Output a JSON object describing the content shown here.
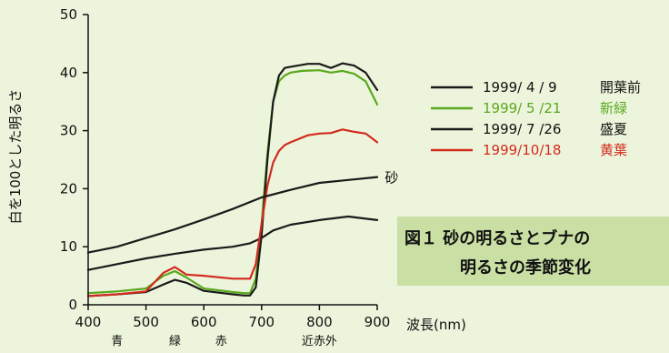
{
  "chart_data": {
    "type": "line",
    "ylabel": "白を100とした明るさ",
    "xlabel": "波長(nm)",
    "xlim": [
      400,
      900
    ],
    "ylim": [
      0,
      50
    ],
    "x_ticks": [
      400,
      500,
      600,
      700,
      800,
      900
    ],
    "y_ticks": [
      0,
      10,
      20,
      30,
      40,
      50
    ],
    "grid": false,
    "legend_position": "right",
    "band_labels": [
      {
        "label": "青",
        "x": 450
      },
      {
        "label": "緑",
        "x": 550
      },
      {
        "label": "赤",
        "x": 630
      },
      {
        "label": "近赤外",
        "x": 800
      }
    ],
    "caption": {
      "line1": "図１ 砂の明るさとブナの",
      "line2": "明るさの季節変化"
    },
    "annotations": [
      {
        "text": "砂",
        "x": 910,
        "y": 22
      }
    ],
    "series": [
      {
        "name": "1999/ 4 / 9　開葉前",
        "date": "1999/ 4 / 9",
        "label": "開葉前",
        "color": "#1a1a1a",
        "x": [
          400,
          450,
          500,
          550,
          600,
          650,
          680,
          700,
          720,
          750,
          800,
          850,
          900
        ],
        "y": [
          6.0,
          7.0,
          8.0,
          8.8,
          9.5,
          10.0,
          10.6,
          11.5,
          12.8,
          13.8,
          14.6,
          15.2,
          14.6
        ]
      },
      {
        "name": "1999/ 5 /21　新緑",
        "date": "1999/ 5 /21",
        "label": "新緑",
        "color": "#5aa81e",
        "x": [
          400,
          450,
          500,
          530,
          550,
          570,
          600,
          650,
          670,
          680,
          690,
          700,
          710,
          720,
          730,
          740,
          750,
          770,
          800,
          820,
          840,
          860,
          880,
          900
        ],
        "y": [
          2.0,
          2.3,
          2.8,
          5.0,
          5.8,
          4.7,
          2.8,
          2.2,
          2.0,
          2.0,
          4.5,
          14.0,
          26.0,
          35.0,
          38.5,
          39.5,
          40.0,
          40.3,
          40.4,
          40.0,
          40.3,
          39.8,
          38.5,
          34.5
        ]
      },
      {
        "name": "1999/ 7 /26　盛夏",
        "date": "1999/ 7 /26",
        "label": "盛夏",
        "color": "#1a1a1a",
        "x": [
          400,
          450,
          500,
          530,
          550,
          570,
          600,
          650,
          670,
          680,
          690,
          700,
          710,
          720,
          730,
          740,
          750,
          780,
          800,
          820,
          840,
          860,
          880,
          900
        ],
        "y": [
          1.5,
          1.8,
          2.2,
          3.5,
          4.3,
          3.8,
          2.4,
          1.8,
          1.6,
          1.6,
          3.0,
          12.0,
          25.0,
          35.0,
          39.5,
          40.8,
          41.0,
          41.5,
          41.5,
          40.8,
          41.6,
          41.2,
          40.0,
          37.0
        ]
      },
      {
        "name": "1999/10/18　黄葉",
        "date": "1999/10/18",
        "label": "黄葉",
        "color": "#d42a1e",
        "x": [
          400,
          450,
          500,
          530,
          550,
          570,
          600,
          650,
          680,
          690,
          700,
          710,
          720,
          730,
          740,
          750,
          780,
          800,
          820,
          840,
          860,
          880,
          900
        ],
        "y": [
          1.5,
          1.8,
          2.3,
          5.5,
          6.5,
          5.2,
          5.0,
          4.5,
          4.5,
          7.0,
          14.0,
          20.5,
          24.5,
          26.5,
          27.5,
          28.0,
          29.2,
          29.5,
          29.6,
          30.2,
          29.8,
          29.5,
          28.0
        ]
      },
      {
        "name": "砂",
        "color": "#1a1a1a",
        "x": [
          400,
          450,
          500,
          550,
          600,
          650,
          700,
          750,
          800,
          850,
          900
        ],
        "y": [
          9.0,
          10.0,
          11.5,
          13.0,
          14.7,
          16.5,
          18.5,
          19.8,
          21.0,
          21.5,
          22.0
        ]
      }
    ]
  }
}
